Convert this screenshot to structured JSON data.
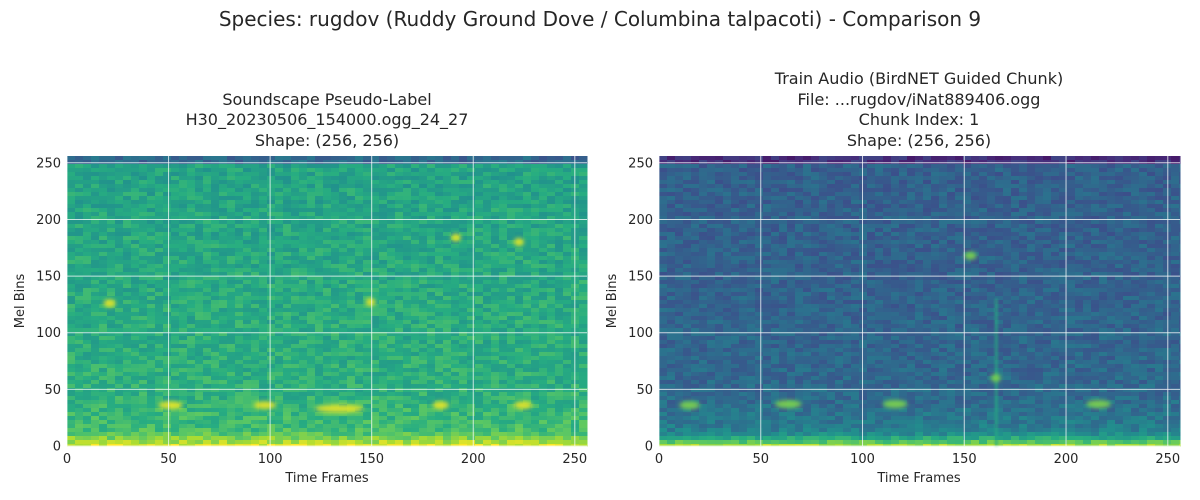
{
  "figure": {
    "suptitle": "Species: rugdov (Ruddy Ground Dove / Columbina talpacoti) - Comparison 9"
  },
  "colormap": "viridis",
  "colors": {
    "grid": "#ffffff",
    "tick_text": "#262626",
    "spine": "#cccccc"
  },
  "chart_data": [
    {
      "type": "heatmap",
      "title": [
        "Soundscape Pseudo-Label",
        "H30_20230506_154000.ogg_24_27",
        "Shape: (256, 256)"
      ],
      "xlabel": "Time Frames",
      "ylabel": "Mel Bins",
      "xlim": [
        0,
        256
      ],
      "ylim": [
        0,
        256
      ],
      "xticks": [
        0,
        50,
        100,
        150,
        200,
        250
      ],
      "yticks": [
        0,
        50,
        100,
        150,
        200,
        250
      ],
      "grid": true,
      "matrix_shape": [
        256,
        256
      ],
      "features": [
        {
          "frame_start": 45,
          "frame_end": 57,
          "mel_bin": 36
        },
        {
          "frame_start": 92,
          "frame_end": 103,
          "mel_bin": 36
        },
        {
          "frame_start": 122,
          "frame_end": 146,
          "mel_bin": 33
        },
        {
          "frame_start": 180,
          "frame_end": 188,
          "mel_bin": 36
        },
        {
          "frame_start": 220,
          "frame_end": 229,
          "mel_bin": 36
        },
        {
          "frame_start": 18,
          "frame_end": 24,
          "mel_bin": 126
        },
        {
          "frame_start": 147,
          "frame_end": 152,
          "mel_bin": 127
        },
        {
          "frame_start": 189,
          "frame_end": 194,
          "mel_bin": 184
        },
        {
          "frame_start": 220,
          "frame_end": 225,
          "mel_bin": 180
        }
      ]
    },
    {
      "type": "heatmap",
      "title": [
        "Train Audio (BirdNET Guided Chunk)",
        "File: ...rugdov/iNat889406.ogg",
        "Chunk Index: 1",
        "Shape: (256, 256)"
      ],
      "xlabel": "Time Frames",
      "ylabel": "Mel Bins",
      "xlim": [
        0,
        256
      ],
      "ylim": [
        0,
        256
      ],
      "xticks": [
        0,
        50,
        100,
        150,
        200,
        250
      ],
      "yticks": [
        0,
        50,
        100,
        150,
        200,
        250
      ],
      "grid": true,
      "matrix_shape": [
        256,
        256
      ],
      "features": [
        {
          "frame_start": 10,
          "frame_end": 20,
          "mel_bin": 36
        },
        {
          "frame_start": 57,
          "frame_end": 70,
          "mel_bin": 37
        },
        {
          "frame_start": 110,
          "frame_end": 122,
          "mel_bin": 37
        },
        {
          "frame_start": 210,
          "frame_end": 222,
          "mel_bin": 37
        },
        {
          "frame_start": 150,
          "frame_end": 156,
          "mel_bin": 168
        },
        {
          "frame_start": 163,
          "frame_end": 168,
          "mel_bin": 60
        }
      ]
    }
  ]
}
